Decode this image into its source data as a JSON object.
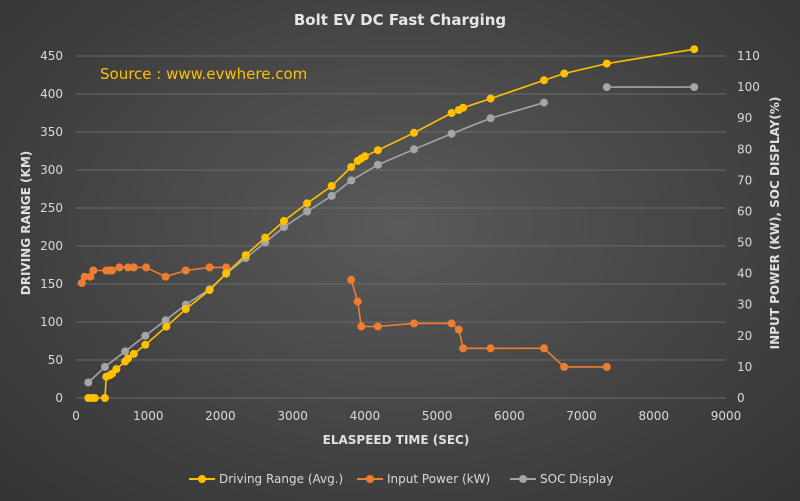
{
  "chart_data": {
    "type": "line",
    "title": "Bolt EV DC Fast Charging",
    "annotation": "Source : www.evwhere.com",
    "xlabel": "ELASPEED TIME (SEC)",
    "ylabel_left": "DRIVING RANGE (KM)",
    "ylabel_right": "INPUT POWER (KW), SOC DISPLAY(%)",
    "xlim": [
      0,
      9000
    ],
    "ylim_left": [
      0,
      450
    ],
    "ylim_right": [
      0,
      110
    ],
    "x_ticks": [
      "0",
      "1000",
      "2000",
      "3000",
      "4000",
      "5000",
      "6000",
      "7000",
      "8000",
      "9000"
    ],
    "y_left_ticks": [
      "0",
      "50",
      "100",
      "150",
      "200",
      "250",
      "300",
      "350",
      "400",
      "450"
    ],
    "y_right_ticks": [
      "0",
      "10",
      "20",
      "30",
      "40",
      "50",
      "60",
      "70",
      "80",
      "90",
      "100",
      "110"
    ],
    "grid": true,
    "legend_position": "bottom",
    "series": [
      {
        "name": "Driving Range (Avg.)",
        "axis": "left",
        "color": "#ffc000",
        "points": [
          [
            170,
            0
          ],
          [
            220,
            0
          ],
          [
            260,
            0
          ],
          [
            400,
            0
          ],
          [
            420,
            28
          ],
          [
            470,
            30
          ],
          [
            500,
            32
          ],
          [
            560,
            38
          ],
          [
            680,
            48
          ],
          [
            720,
            52
          ],
          [
            800,
            58
          ],
          [
            960,
            70
          ],
          [
            1250,
            94
          ],
          [
            1520,
            117
          ],
          [
            1850,
            142
          ],
          [
            2080,
            164
          ],
          [
            2350,
            188
          ],
          [
            2620,
            211
          ],
          [
            2880,
            233
          ],
          [
            3200,
            256
          ],
          [
            3540,
            279
          ],
          [
            3810,
            304
          ],
          [
            3900,
            312
          ],
          [
            3950,
            315
          ],
          [
            4000,
            318
          ],
          [
            4180,
            326
          ],
          [
            4680,
            349
          ],
          [
            5200,
            375
          ],
          [
            5300,
            379
          ],
          [
            5360,
            382
          ],
          [
            5740,
            394
          ],
          [
            6480,
            418
          ],
          [
            6760,
            427
          ],
          [
            7350,
            440
          ],
          [
            8560,
            459
          ]
        ]
      },
      {
        "name": "Input Power (kW)",
        "axis": "right",
        "color": "#ed7d31",
        "segments": [
          [
            [
              80,
              37
            ],
            [
              120,
              39
            ],
            [
              200,
              39
            ],
            [
              240,
              41
            ],
            [
              420,
              41
            ],
            [
              460,
              41
            ],
            [
              500,
              41
            ],
            [
              600,
              42
            ],
            [
              720,
              42
            ],
            [
              800,
              42
            ],
            [
              970,
              42
            ],
            [
              1240,
              39
            ],
            [
              1520,
              41
            ],
            [
              1850,
              42
            ],
            [
              2080,
              42
            ]
          ],
          [
            [
              3810,
              38
            ],
            [
              3900,
              31
            ],
            [
              3950,
              23
            ],
            [
              4180,
              23
            ],
            [
              4680,
              24
            ],
            [
              5200,
              24
            ],
            [
              5300,
              22
            ],
            [
              5360,
              16
            ],
            [
              5740,
              16
            ],
            [
              6480,
              16
            ],
            [
              6760,
              10
            ],
            [
              7350,
              10
            ]
          ]
        ]
      },
      {
        "name": "SOC Display",
        "axis": "right",
        "color": "#a5a5a5",
        "points": [
          [
            170,
            5
          ],
          [
            400,
            10
          ],
          [
            680,
            15
          ],
          [
            960,
            20
          ],
          [
            1240,
            25
          ],
          [
            1520,
            30
          ],
          [
            1850,
            35
          ],
          [
            2080,
            40
          ],
          [
            2350,
            45
          ],
          [
            2620,
            50
          ],
          [
            2880,
            55
          ],
          [
            3200,
            60
          ],
          [
            3540,
            65
          ],
          [
            3810,
            70
          ],
          [
            4180,
            75
          ],
          [
            4680,
            80
          ],
          [
            5200,
            85
          ],
          [
            5740,
            90
          ],
          [
            6480,
            95
          ],
          [
            7350,
            100
          ],
          [
            8560,
            100
          ]
        ],
        "break_after_x": 6480
      }
    ]
  }
}
